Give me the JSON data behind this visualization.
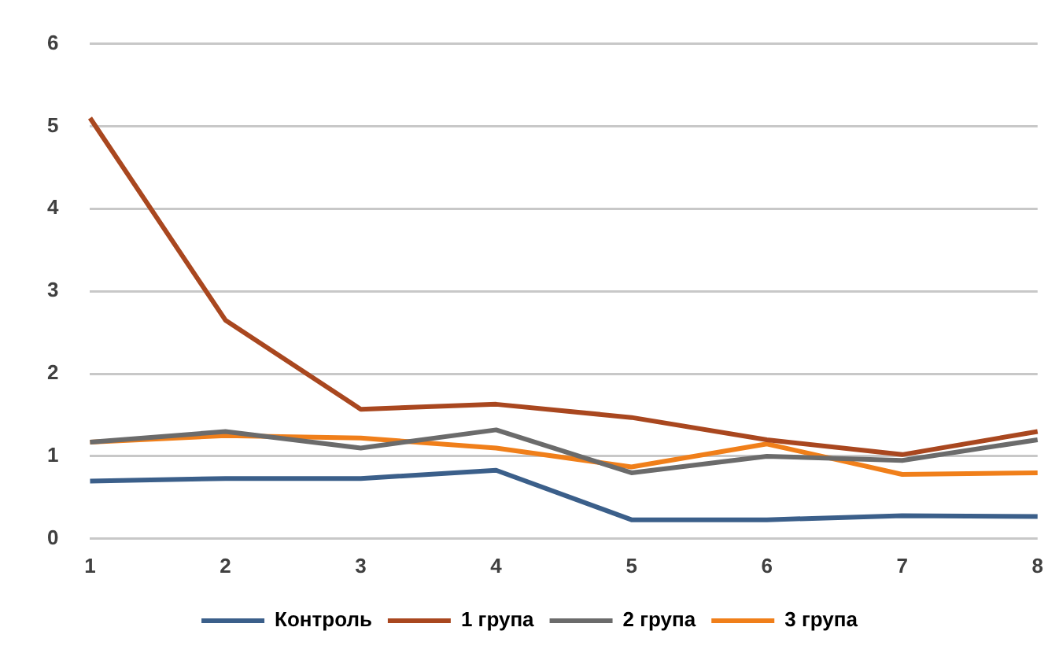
{
  "chart_data": {
    "type": "line",
    "categories": [
      "1",
      "2",
      "3",
      "4",
      "5",
      "6",
      "7",
      "8"
    ],
    "series": [
      {
        "name": "Контроль",
        "color": "#3b5f8a",
        "values": [
          0.7,
          0.73,
          0.73,
          0.83,
          0.23,
          0.23,
          0.28,
          0.27
        ]
      },
      {
        "name": "1 група",
        "color": "#a9471f",
        "values": [
          5.1,
          2.65,
          1.57,
          1.63,
          1.47,
          1.2,
          1.02,
          1.3
        ]
      },
      {
        "name": "2 група",
        "color": "#6b6b6b",
        "values": [
          1.17,
          1.3,
          1.1,
          1.32,
          0.8,
          1.0,
          0.95,
          1.2
        ]
      },
      {
        "name": "3 група",
        "color": "#f07f1a",
        "values": [
          1.17,
          1.25,
          1.22,
          1.1,
          0.87,
          1.15,
          0.78,
          0.8
        ]
      }
    ],
    "ylim": [
      0,
      6
    ],
    "yticks": [
      0,
      1,
      2,
      3,
      4,
      5,
      6
    ],
    "grid": "y",
    "legend": "bottom",
    "marker": "none",
    "line_style": "solid"
  }
}
